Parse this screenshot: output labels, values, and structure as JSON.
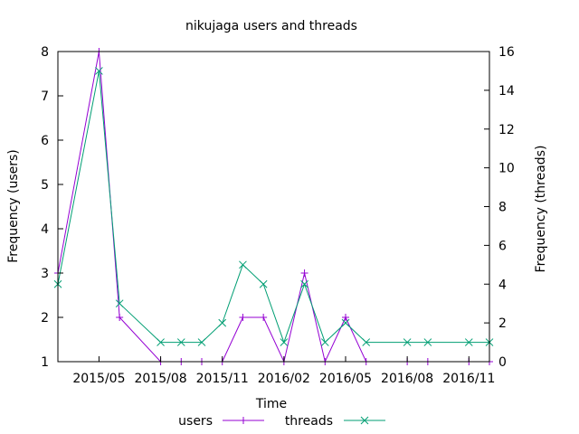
{
  "chart_data": {
    "type": "line",
    "title": "nikujaga users and threads",
    "xlabel": "Time",
    "ylabel_left": "Frequency (users)",
    "ylabel_right": "Frequency (threads)",
    "x_range": [
      "2015-03",
      "2016-12"
    ],
    "xticks": [
      "2015/05",
      "2015/08",
      "2015/11",
      "2016/02",
      "2016/05",
      "2016/08",
      "2016/11"
    ],
    "ylim_left": [
      1,
      8
    ],
    "yticks_left": [
      "1",
      "2",
      "3",
      "4",
      "5",
      "6",
      "7",
      "8"
    ],
    "ylim_right": [
      0,
      16
    ],
    "yticks_right": [
      "0",
      "2",
      "4",
      "6",
      "8",
      "10",
      "12",
      "14",
      "16"
    ],
    "x": [
      "2015-03",
      "2015-05",
      "2015-06",
      "2015-08",
      "2015-09",
      "2015-10",
      "2015-11",
      "2015-12",
      "2016-01",
      "2016-02",
      "2016-03",
      "2016-04",
      "2016-05",
      "2016-06",
      "2016-08",
      "2016-09",
      "2016-11",
      "2016-12"
    ],
    "series": [
      {
        "name": "users",
        "axis": "left",
        "color": "#9400d3",
        "marker": "plus",
        "values": [
          3,
          8,
          2,
          1,
          1,
          1,
          1,
          2,
          2,
          1,
          3,
          1,
          2,
          1,
          1,
          1,
          1,
          1
        ]
      },
      {
        "name": "threads",
        "axis": "right",
        "color": "#009e73",
        "marker": "cross",
        "values": [
          4,
          15,
          3,
          1,
          1,
          1,
          2,
          5,
          4,
          1,
          4,
          1,
          2,
          1,
          1,
          1,
          1,
          1
        ]
      }
    ],
    "grid": false,
    "legend_position": "bottom"
  }
}
